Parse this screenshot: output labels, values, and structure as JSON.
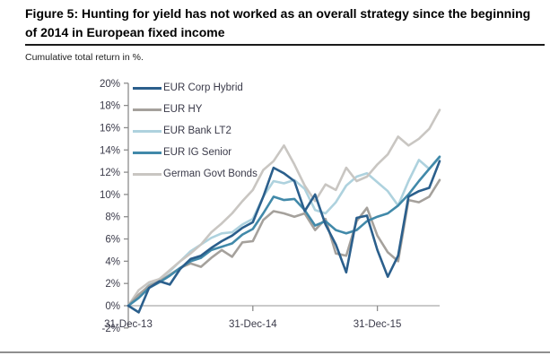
{
  "figure": {
    "title": "Figure 5: Hunting for yield has not worked as an overall strategy since the beginning of 2014 in European fixed income",
    "subtitle": "Cumulative total return in %."
  },
  "chart_data": {
    "type": "line",
    "x": [
      "Dec-13",
      "Jan-14",
      "Feb-14",
      "Mar-14",
      "Apr-14",
      "May-14",
      "Jun-14",
      "Jul-14",
      "Aug-14",
      "Sep-14",
      "Oct-14",
      "Nov-14",
      "Dec-14",
      "Jan-15",
      "Feb-15",
      "Mar-15",
      "Apr-15",
      "May-15",
      "Jun-15",
      "Jul-15",
      "Aug-15",
      "Sep-15",
      "Oct-15",
      "Nov-15",
      "Dec-15",
      "Jan-16",
      "Feb-16",
      "Mar-16",
      "Apr-16",
      "May-16",
      "Jun-16"
    ],
    "xtick_labels": [
      "31-Dec-13",
      "31-Dec-14",
      "31-Dec-15"
    ],
    "xtick_month_index": [
      0,
      12,
      24
    ],
    "ylim": [
      -2,
      20
    ],
    "ytick_step": 2,
    "ytick_suffix": "%",
    "grid": "zero-line-only",
    "legend_position": "top-left-inside",
    "axis_color": "#8c8c8c",
    "zero_line_color": "#ababab",
    "series": [
      {
        "name": "EUR Corp Hybrid",
        "color": "#2b5f8c",
        "values": [
          0,
          -0.6,
          1.6,
          2.2,
          1.9,
          3.3,
          4.2,
          4.5,
          5.2,
          5.8,
          6.3,
          7.0,
          7.5,
          9.8,
          12.4,
          11.9,
          11.2,
          8.5,
          10.0,
          7.3,
          5.5,
          3.0,
          7.9,
          8.1,
          5.0,
          2.6,
          4.5,
          9.8,
          10.3,
          10.6,
          13.0
        ]
      },
      {
        "name": "EUR HY",
        "color": "#a5a19c",
        "values": [
          0,
          1.0,
          1.8,
          2.2,
          2.8,
          3.4,
          3.8,
          3.5,
          4.3,
          5.0,
          4.4,
          5.7,
          5.8,
          7.7,
          8.5,
          8.3,
          8.0,
          8.3,
          6.8,
          7.8,
          4.7,
          4.5,
          7.6,
          8.8,
          6.3,
          4.8,
          4.0,
          9.5,
          9.3,
          9.8,
          11.3
        ]
      },
      {
        "name": "EUR Bank LT2",
        "color": "#aed2de",
        "values": [
          0,
          0.8,
          1.9,
          2.4,
          3.1,
          4.0,
          4.9,
          5.5,
          6.1,
          6.5,
          6.6,
          7.3,
          7.8,
          9.8,
          11.2,
          11.0,
          11.3,
          10.5,
          8.6,
          8.3,
          9.3,
          10.8,
          11.6,
          11.9,
          11.1,
          10.3,
          9.0,
          11.2,
          13.1,
          12.3,
          13.3
        ]
      },
      {
        "name": "EUR IG Senior",
        "color": "#4189a9",
        "values": [
          0,
          0.7,
          1.6,
          2.1,
          2.7,
          3.4,
          4.0,
          4.3,
          5.0,
          5.3,
          5.6,
          6.4,
          6.9,
          8.3,
          9.8,
          9.5,
          9.6,
          8.6,
          7.2,
          7.6,
          6.8,
          6.5,
          6.8,
          7.6,
          8.0,
          8.3,
          9.0,
          10.0,
          11.2,
          12.3,
          13.4
        ]
      },
      {
        "name": "German Govt Bonds",
        "color": "#c9c6c2",
        "values": [
          0,
          1.4,
          2.1,
          2.4,
          3.2,
          4.0,
          4.7,
          5.5,
          6.6,
          7.4,
          8.3,
          9.4,
          10.4,
          12.2,
          13.0,
          14.4,
          12.7,
          10.8,
          9.4,
          10.9,
          10.4,
          12.4,
          11.2,
          11.6,
          12.7,
          13.6,
          15.2,
          14.4,
          15.0,
          15.9,
          17.6
        ]
      }
    ]
  }
}
